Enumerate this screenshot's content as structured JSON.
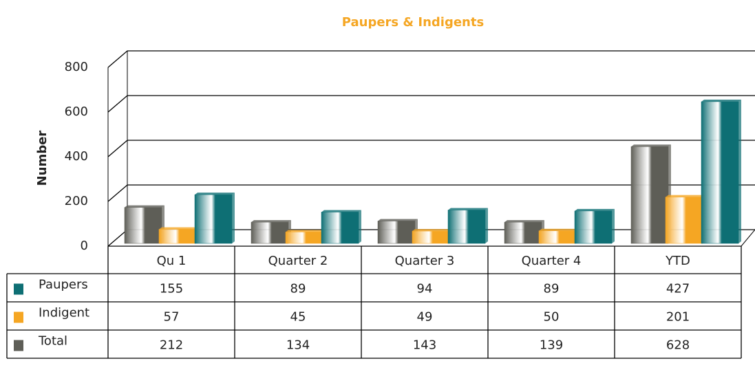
{
  "chart_data": {
    "type": "bar3d_table",
    "title": "Paupers & Indigents",
    "y_label": "Number",
    "categories": [
      "Qu  1",
      "Quarter 2",
      "Quarter 3",
      "Quarter 4",
      "YTD"
    ],
    "series": [
      {
        "name": "Paupers",
        "color": "#0e6f74",
        "values": [
          155,
          89,
          94,
          89,
          427
        ]
      },
      {
        "name": "Indigent",
        "color": "#f5a623",
        "values": [
          57,
          45,
          49,
          50,
          201
        ]
      },
      {
        "name": "Total",
        "color": "#5e5e57",
        "values": [
          212,
          134,
          143,
          139,
          628
        ]
      }
    ],
    "bar_colors": [
      "#5e5e57",
      "#f5a623",
      "#0e6f74"
    ],
    "ylim": [
      0,
      800
    ],
    "yticks": [
      0,
      200,
      400,
      600,
      800
    ],
    "grid": true
  }
}
